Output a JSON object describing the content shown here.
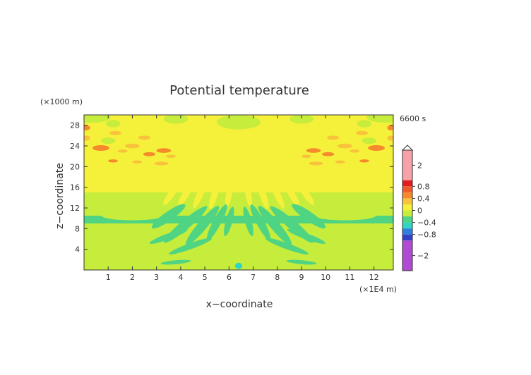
{
  "chart_data": {
    "type": "heatmap",
    "title": "Potential temperature",
    "xlabel": "x−coordinate",
    "ylabel": "z−coordinate",
    "x_unit": "(×1E4 m)",
    "y_unit": "(×1000 m)",
    "time_label": "6600 s",
    "xlim": [
      0,
      12.8
    ],
    "ylim": [
      0,
      30
    ],
    "x_ticks": [
      "1",
      "2",
      "3",
      "4",
      "5",
      "6",
      "7",
      "8",
      "9",
      "10",
      "11",
      "12"
    ],
    "y_ticks": [
      "4",
      "8",
      "12",
      "16",
      "20",
      "24",
      "28"
    ],
    "colorbar": {
      "tick_labels": [
        "2",
        "0.8",
        "0.4",
        "0",
        "−0.4",
        "−0.8",
        "−2"
      ],
      "tick_values": [
        2,
        0.8,
        0.4,
        0,
        -0.4,
        -0.8,
        -2
      ],
      "levels": [
        {
          "min": 1.0,
          "max": 3.0,
          "color": "#f7a1a8"
        },
        {
          "min": 0.8,
          "max": 1.0,
          "color": "#e11a1f"
        },
        {
          "min": 0.6,
          "max": 0.8,
          "color": "#f05a2a"
        },
        {
          "min": 0.4,
          "max": 0.6,
          "color": "#f58a2c"
        },
        {
          "min": 0.2,
          "max": 0.4,
          "color": "#f8c23a"
        },
        {
          "min": 0.0,
          "max": 0.2,
          "color": "#f5f03a"
        },
        {
          "min": -0.2,
          "max": 0.0,
          "color": "#c6ec3c"
        },
        {
          "min": -0.4,
          "max": -0.2,
          "color": "#4ed483"
        },
        {
          "min": -0.6,
          "max": -0.4,
          "color": "#2fd6c2"
        },
        {
          "min": -0.8,
          "max": -0.6,
          "color": "#2e7fe0"
        },
        {
          "min": -1.0,
          "max": -0.8,
          "color": "#3340c8"
        },
        {
          "min": -3.0,
          "max": -1.0,
          "color": "#b04ad2"
        }
      ]
    },
    "background_value": -0.1,
    "regions": [
      {
        "type": "band",
        "x": [
          0,
          12.8
        ],
        "y": [
          15,
          30
        ],
        "value": 0.1
      },
      {
        "type": "band",
        "x": [
          0,
          12.8
        ],
        "y": [
          9,
          10.5
        ],
        "value": -0.3
      },
      {
        "type": "band",
        "x": [
          4.0,
          9.0
        ],
        "y": [
          10.5,
          14.5
        ],
        "value": -0.1
      },
      {
        "type": "blob",
        "cx": 0.3,
        "cy": 29.5,
        "rx": 0.8,
        "ry": 1.0,
        "value": -0.1
      },
      {
        "type": "blob",
        "cx": 3.8,
        "cy": 29.2,
        "rx": 0.5,
        "ry": 0.9,
        "value": -0.1
      },
      {
        "type": "blob",
        "cx": 6.4,
        "cy": 28.6,
        "rx": 0.9,
        "ry": 1.4,
        "value": -0.1
      },
      {
        "type": "blob",
        "cx": 9.0,
        "cy": 29.2,
        "rx": 0.5,
        "ry": 0.9,
        "value": -0.1
      },
      {
        "type": "blob",
        "cx": 12.5,
        "cy": 29.5,
        "rx": 0.8,
        "ry": 1.0,
        "value": -0.1
      },
      {
        "type": "blob",
        "cx": 1.2,
        "cy": 28.3,
        "rx": 0.3,
        "ry": 0.7,
        "value": -0.1
      },
      {
        "type": "blob",
        "cx": 11.6,
        "cy": 28.3,
        "rx": 0.3,
        "ry": 0.7,
        "value": -0.1
      },
      {
        "type": "blob",
        "cx": 1.0,
        "cy": 25.0,
        "rx": 0.3,
        "ry": 0.6,
        "value": -0.1
      },
      {
        "type": "blob",
        "cx": 11.8,
        "cy": 25.0,
        "rx": 0.3,
        "ry": 0.6,
        "value": -0.1
      },
      {
        "type": "blob",
        "cx": 0.1,
        "cy": 27.5,
        "rx": 0.15,
        "ry": 0.5,
        "value": 0.5
      },
      {
        "type": "blob",
        "cx": 0.1,
        "cy": 25.5,
        "rx": 0.15,
        "ry": 0.5,
        "value": 0.3
      },
      {
        "type": "blob",
        "cx": 12.7,
        "cy": 27.5,
        "rx": 0.15,
        "ry": 0.5,
        "value": 0.5
      },
      {
        "type": "blob",
        "cx": 12.7,
        "cy": 25.5,
        "rx": 0.15,
        "ry": 0.5,
        "value": 0.3
      },
      {
        "type": "blob",
        "cx": 0.7,
        "cy": 23.6,
        "rx": 0.35,
        "ry": 0.55,
        "value": 0.5
      },
      {
        "type": "blob",
        "cx": 1.3,
        "cy": 26.5,
        "rx": 0.25,
        "ry": 0.4,
        "value": 0.3
      },
      {
        "type": "blob",
        "cx": 1.6,
        "cy": 23.0,
        "rx": 0.2,
        "ry": 0.3,
        "value": 0.3
      },
      {
        "type": "blob",
        "cx": 1.2,
        "cy": 21.1,
        "rx": 0.2,
        "ry": 0.3,
        "value": 0.5
      },
      {
        "type": "blob",
        "cx": 2.0,
        "cy": 24.0,
        "rx": 0.3,
        "ry": 0.45,
        "value": 0.3
      },
      {
        "type": "blob",
        "cx": 2.7,
        "cy": 22.4,
        "rx": 0.25,
        "ry": 0.4,
        "value": 0.5
      },
      {
        "type": "blob",
        "cx": 2.2,
        "cy": 20.9,
        "rx": 0.2,
        "ry": 0.3,
        "value": 0.3
      },
      {
        "type": "blob",
        "cx": 3.2,
        "cy": 20.6,
        "rx": 0.3,
        "ry": 0.35,
        "value": 0.3
      },
      {
        "type": "blob",
        "cx": 3.3,
        "cy": 23.1,
        "rx": 0.3,
        "ry": 0.45,
        "value": 0.5
      },
      {
        "type": "blob",
        "cx": 3.6,
        "cy": 22.0,
        "rx": 0.2,
        "ry": 0.3,
        "value": 0.3
      },
      {
        "type": "blob",
        "cx": 2.5,
        "cy": 25.6,
        "rx": 0.25,
        "ry": 0.4,
        "value": 0.3
      },
      {
        "type": "blob",
        "cx": 12.1,
        "cy": 23.6,
        "rx": 0.35,
        "ry": 0.55,
        "value": 0.5
      },
      {
        "type": "blob",
        "cx": 11.5,
        "cy": 26.5,
        "rx": 0.25,
        "ry": 0.4,
        "value": 0.3
      },
      {
        "type": "blob",
        "cx": 11.2,
        "cy": 23.0,
        "rx": 0.2,
        "ry": 0.3,
        "value": 0.3
      },
      {
        "type": "blob",
        "cx": 11.6,
        "cy": 21.1,
        "rx": 0.2,
        "ry": 0.3,
        "value": 0.5
      },
      {
        "type": "blob",
        "cx": 10.8,
        "cy": 24.0,
        "rx": 0.3,
        "ry": 0.45,
        "value": 0.3
      },
      {
        "type": "blob",
        "cx": 10.1,
        "cy": 22.4,
        "rx": 0.25,
        "ry": 0.4,
        "value": 0.5
      },
      {
        "type": "blob",
        "cx": 10.6,
        "cy": 20.9,
        "rx": 0.2,
        "ry": 0.3,
        "value": 0.3
      },
      {
        "type": "blob",
        "cx": 9.6,
        "cy": 20.6,
        "rx": 0.3,
        "ry": 0.35,
        "value": 0.3
      },
      {
        "type": "blob",
        "cx": 9.5,
        "cy": 23.1,
        "rx": 0.3,
        "ry": 0.45,
        "value": 0.5
      },
      {
        "type": "blob",
        "cx": 9.2,
        "cy": 22.0,
        "rx": 0.2,
        "ry": 0.3,
        "value": 0.3
      },
      {
        "type": "blob",
        "cx": 10.3,
        "cy": 25.6,
        "rx": 0.25,
        "ry": 0.4,
        "value": 0.3
      },
      {
        "type": "blob",
        "cx": 2.0,
        "cy": 10.6,
        "rx": 1.3,
        "ry": 1.0,
        "value": -0.1
      },
      {
        "type": "blob",
        "cx": 10.8,
        "cy": 10.6,
        "rx": 1.3,
        "ry": 1.0,
        "value": -0.1
      },
      {
        "type": "blob",
        "cx": 6.4,
        "cy": 0.8,
        "rx": 0.15,
        "ry": 0.6,
        "value": -0.5
      },
      {
        "type": "streak",
        "cx": 3.6,
        "cy": 14.6,
        "len": 1.0,
        "wid": 0.5,
        "angle": 55,
        "value": 0.1
      },
      {
        "type": "streak",
        "cx": 4.2,
        "cy": 14.6,
        "len": 1.1,
        "wid": 0.5,
        "angle": 60,
        "value": 0.1
      },
      {
        "type": "streak",
        "cx": 4.8,
        "cy": 14.6,
        "len": 1.2,
        "wid": 0.5,
        "angle": 65,
        "value": 0.1
      },
      {
        "type": "streak",
        "cx": 5.4,
        "cy": 14.6,
        "len": 1.2,
        "wid": 0.5,
        "angle": 72,
        "value": 0.1
      },
      {
        "type": "streak",
        "cx": 6.0,
        "cy": 14.6,
        "len": 1.0,
        "wid": 0.45,
        "angle": 80,
        "value": 0.1
      },
      {
        "type": "streak",
        "cx": 6.8,
        "cy": 14.6,
        "len": 1.0,
        "wid": 0.45,
        "angle": 100,
        "value": 0.1
      },
      {
        "type": "streak",
        "cx": 7.4,
        "cy": 14.6,
        "len": 1.2,
        "wid": 0.5,
        "angle": 108,
        "value": 0.1
      },
      {
        "type": "streak",
        "cx": 8.0,
        "cy": 14.6,
        "len": 1.2,
        "wid": 0.5,
        "angle": 115,
        "value": 0.1
      },
      {
        "type": "streak",
        "cx": 8.6,
        "cy": 14.6,
        "len": 1.1,
        "wid": 0.5,
        "angle": 120,
        "value": 0.1
      },
      {
        "type": "streak",
        "cx": 9.2,
        "cy": 14.6,
        "len": 1.0,
        "wid": 0.5,
        "angle": 125,
        "value": 0.1
      },
      {
        "type": "streak",
        "cx": 3.5,
        "cy": 10.4,
        "len": 1.6,
        "wid": 0.7,
        "angle": 35,
        "value": -0.3
      },
      {
        "type": "streak",
        "cx": 4.2,
        "cy": 8.8,
        "len": 2.2,
        "wid": 0.7,
        "angle": 40,
        "value": -0.3
      },
      {
        "type": "streak",
        "cx": 4.9,
        "cy": 8.6,
        "len": 2.0,
        "wid": 0.7,
        "angle": 50,
        "value": -0.3
      },
      {
        "type": "streak",
        "cx": 5.5,
        "cy": 9.2,
        "len": 1.6,
        "wid": 0.6,
        "angle": 62,
        "value": -0.3
      },
      {
        "type": "streak",
        "cx": 6.0,
        "cy": 9.4,
        "len": 1.2,
        "wid": 0.5,
        "angle": 75,
        "value": -0.3
      },
      {
        "type": "streak",
        "cx": 6.8,
        "cy": 9.4,
        "len": 1.2,
        "wid": 0.5,
        "angle": 105,
        "value": -0.3
      },
      {
        "type": "streak",
        "cx": 7.3,
        "cy": 9.2,
        "len": 1.6,
        "wid": 0.6,
        "angle": 118,
        "value": -0.3
      },
      {
        "type": "streak",
        "cx": 7.9,
        "cy": 8.6,
        "len": 2.0,
        "wid": 0.7,
        "angle": 130,
        "value": -0.3
      },
      {
        "type": "streak",
        "cx": 8.6,
        "cy": 8.8,
        "len": 2.2,
        "wid": 0.7,
        "angle": 140,
        "value": -0.3
      },
      {
        "type": "streak",
        "cx": 9.3,
        "cy": 10.4,
        "len": 1.6,
        "wid": 0.7,
        "angle": 145,
        "value": -0.3
      },
      {
        "type": "streak",
        "cx": 3.5,
        "cy": 6.5,
        "len": 1.6,
        "wid": 0.45,
        "angle": 20,
        "value": -0.3
      },
      {
        "type": "streak",
        "cx": 4.4,
        "cy": 4.6,
        "len": 1.8,
        "wid": 0.45,
        "angle": 20,
        "value": -0.3
      },
      {
        "type": "streak",
        "cx": 9.2,
        "cy": 6.5,
        "len": 1.6,
        "wid": 0.45,
        "angle": 160,
        "value": -0.3
      },
      {
        "type": "streak",
        "cx": 8.4,
        "cy": 4.6,
        "len": 1.8,
        "wid": 0.45,
        "angle": 160,
        "value": -0.3
      },
      {
        "type": "streak",
        "cx": 3.8,
        "cy": 1.5,
        "len": 1.2,
        "wid": 0.3,
        "angle": 5,
        "value": -0.3
      },
      {
        "type": "streak",
        "cx": 9.0,
        "cy": 1.5,
        "len": 1.2,
        "wid": 0.3,
        "angle": 175,
        "value": -0.3
      }
    ]
  }
}
